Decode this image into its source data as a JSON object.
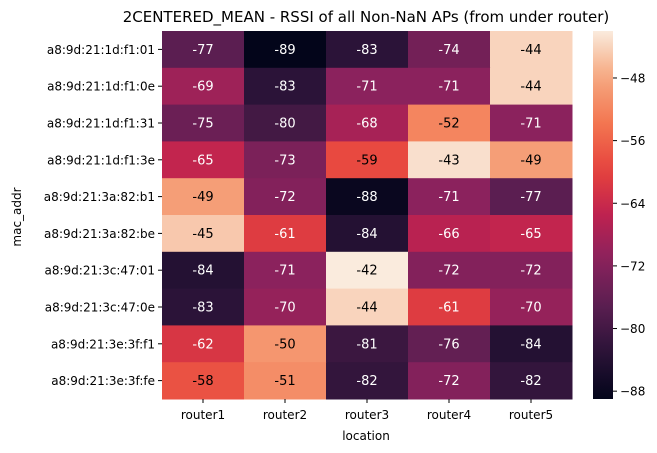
{
  "chart_data": {
    "type": "heatmap",
    "title": "2CENTERED_MEAN - RSSI of all Non-NaN APs (from under router)",
    "xlabel": "location",
    "ylabel": "mac_addr",
    "x_categories": [
      "router1",
      "router2",
      "router3",
      "router4",
      "router5"
    ],
    "y_categories": [
      "a8:9d:21:1d:f1:01",
      "a8:9d:21:1d:f1:0e",
      "a8:9d:21:1d:f1:31",
      "a8:9d:21:1d:f1:3e",
      "a8:9d:21:3a:82:b1",
      "a8:9d:21:3a:82:be",
      "a8:9d:21:3c:47:01",
      "a8:9d:21:3c:47:0e",
      "a8:9d:21:3e:3f:f1",
      "a8:9d:21:3e:3f:fe"
    ],
    "values": [
      [
        -77,
        -89,
        -83,
        -74,
        -44
      ],
      [
        -69,
        -83,
        -71,
        -71,
        -44
      ],
      [
        -75,
        -80,
        -68,
        -52,
        -71
      ],
      [
        -65,
        -73,
        -59,
        -43,
        -49
      ],
      [
        -49,
        -72,
        -88,
        -71,
        -77
      ],
      [
        -45,
        -61,
        -84,
        -66,
        -65
      ],
      [
        -84,
        -71,
        -42,
        -72,
        -72
      ],
      [
        -83,
        -70,
        -44,
        -61,
        -70
      ],
      [
        -62,
        -50,
        -81,
        -76,
        -84
      ],
      [
        -58,
        -51,
        -82,
        -72,
        -82
      ]
    ],
    "colorscale": "rocket",
    "value_range": [
      -89,
      -42
    ],
    "colorbar_ticks": [
      -48,
      -56,
      -64,
      -72,
      -80,
      -88
    ],
    "legend": "right"
  }
}
